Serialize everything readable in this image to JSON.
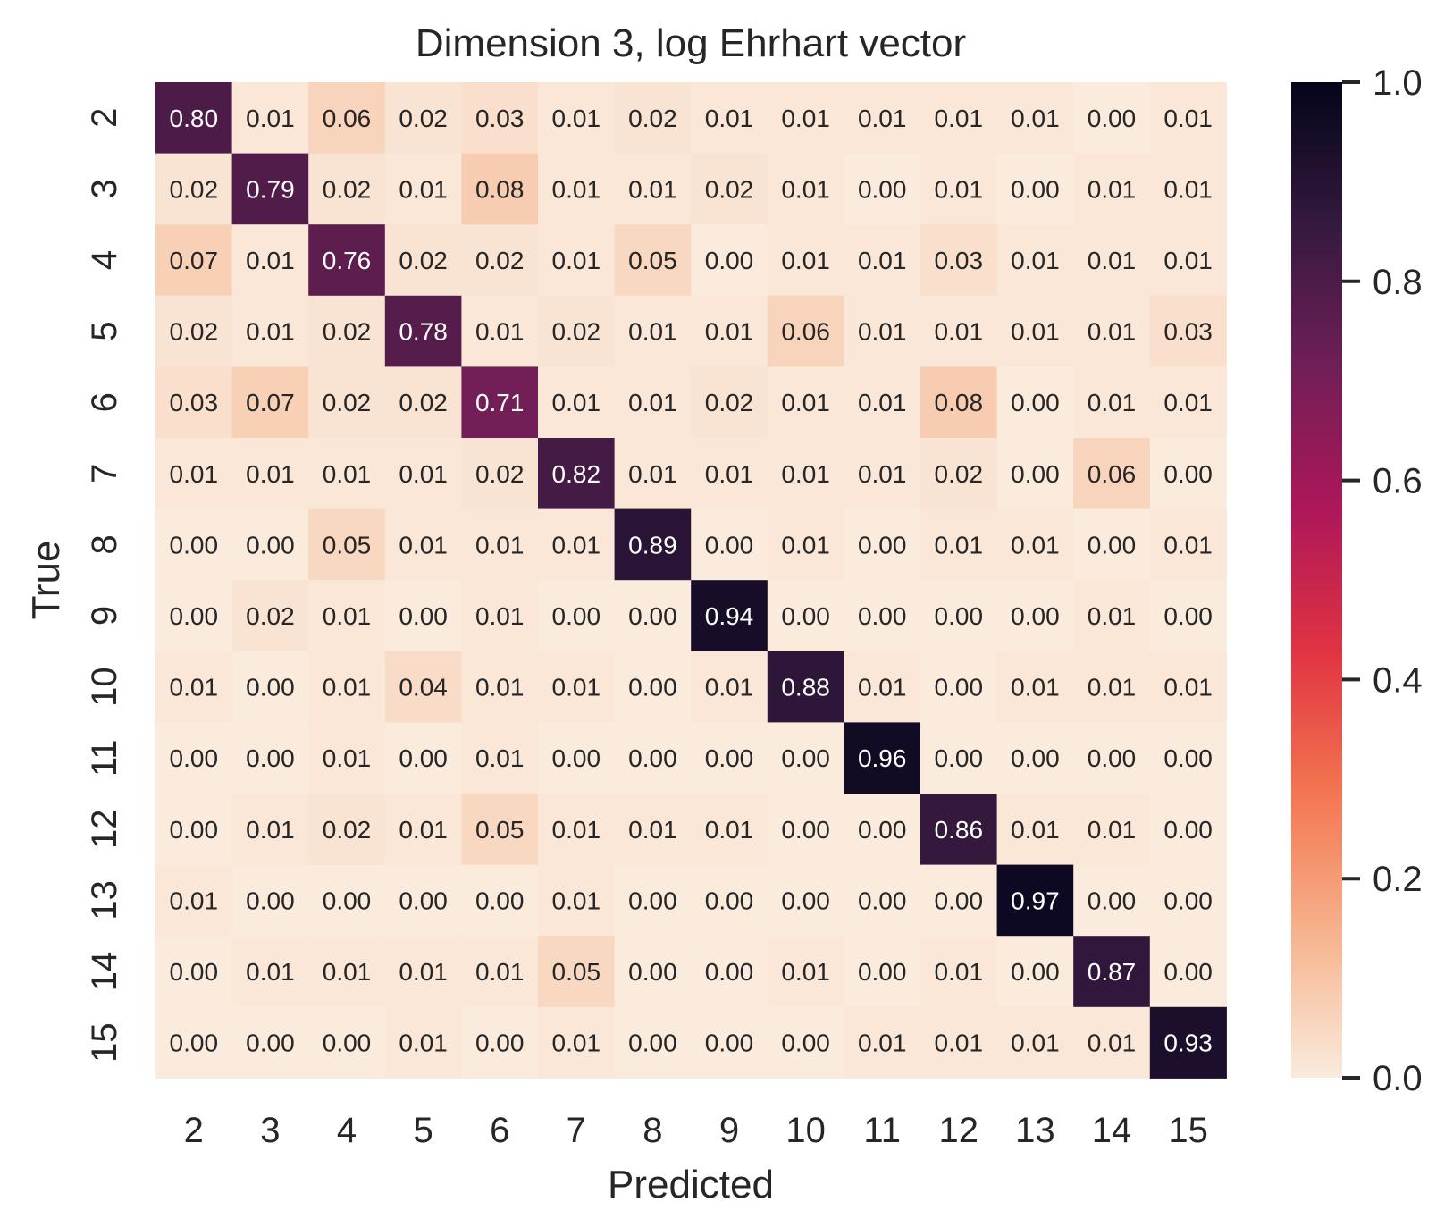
{
  "chart_data": {
    "type": "heatmap",
    "title": "Dimension 3, log Ehrhart vector",
    "xlabel": "Predicted",
    "ylabel": "True",
    "x_categories": [
      "2",
      "3",
      "4",
      "5",
      "6",
      "7",
      "8",
      "9",
      "10",
      "11",
      "12",
      "13",
      "14",
      "15"
    ],
    "y_categories": [
      "2",
      "3",
      "4",
      "5",
      "6",
      "7",
      "8",
      "9",
      "10",
      "11",
      "12",
      "13",
      "14",
      "15"
    ],
    "values": [
      [
        0.8,
        0.01,
        0.06,
        0.02,
        0.03,
        0.01,
        0.02,
        0.01,
        0.01,
        0.01,
        0.01,
        0.01,
        0.0,
        0.01
      ],
      [
        0.02,
        0.79,
        0.02,
        0.01,
        0.08,
        0.01,
        0.01,
        0.02,
        0.01,
        0.0,
        0.01,
        0.0,
        0.01,
        0.01
      ],
      [
        0.07,
        0.01,
        0.76,
        0.02,
        0.02,
        0.01,
        0.05,
        0.0,
        0.01,
        0.01,
        0.03,
        0.01,
        0.01,
        0.01
      ],
      [
        0.02,
        0.01,
        0.02,
        0.78,
        0.01,
        0.02,
        0.01,
        0.01,
        0.06,
        0.01,
        0.01,
        0.01,
        0.01,
        0.03
      ],
      [
        0.03,
        0.07,
        0.02,
        0.02,
        0.71,
        0.01,
        0.01,
        0.02,
        0.01,
        0.01,
        0.08,
        0.0,
        0.01,
        0.01
      ],
      [
        0.01,
        0.01,
        0.01,
        0.01,
        0.02,
        0.82,
        0.01,
        0.01,
        0.01,
        0.01,
        0.02,
        0.0,
        0.06,
        0.0
      ],
      [
        0.0,
        0.0,
        0.05,
        0.01,
        0.01,
        0.01,
        0.89,
        0.0,
        0.01,
        0.0,
        0.01,
        0.01,
        0.0,
        0.01
      ],
      [
        0.0,
        0.02,
        0.01,
        0.0,
        0.01,
        0.0,
        0.0,
        0.94,
        0.0,
        0.0,
        0.0,
        0.0,
        0.01,
        0.0
      ],
      [
        0.01,
        0.0,
        0.01,
        0.04,
        0.01,
        0.01,
        0.0,
        0.01,
        0.88,
        0.01,
        0.0,
        0.01,
        0.01,
        0.01
      ],
      [
        0.0,
        0.0,
        0.01,
        0.0,
        0.01,
        0.0,
        0.0,
        0.0,
        0.0,
        0.96,
        0.0,
        0.0,
        0.0,
        0.0
      ],
      [
        0.0,
        0.01,
        0.02,
        0.01,
        0.05,
        0.01,
        0.01,
        0.01,
        0.0,
        0.0,
        0.86,
        0.01,
        0.01,
        0.0
      ],
      [
        0.01,
        0.0,
        0.0,
        0.0,
        0.0,
        0.01,
        0.0,
        0.0,
        0.0,
        0.0,
        0.0,
        0.97,
        0.0,
        0.0
      ],
      [
        0.0,
        0.01,
        0.01,
        0.01,
        0.01,
        0.05,
        0.0,
        0.0,
        0.01,
        0.0,
        0.01,
        0.0,
        0.87,
        0.0
      ],
      [
        0.0,
        0.0,
        0.0,
        0.01,
        0.0,
        0.01,
        0.0,
        0.0,
        0.0,
        0.01,
        0.01,
        0.01,
        0.01,
        0.93
      ]
    ],
    "colorbar": {
      "range": [
        0,
        1
      ],
      "ticks": [
        "0.0",
        "0.2",
        "0.4",
        "0.6",
        "0.8",
        "1.0"
      ],
      "colormap": "rocket_r",
      "stops": [
        "#faebdd",
        "#f6b48e",
        "#f37651",
        "#e13342",
        "#ad1759",
        "#701f57",
        "#35193e",
        "#03051a"
      ]
    },
    "grid": false,
    "annotations": true
  }
}
